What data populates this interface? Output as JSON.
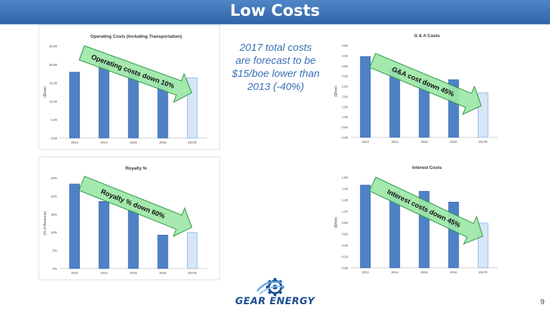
{
  "slide": {
    "title": "Low Costs",
    "summary": "2017 total costs are forecast to be $15/boe lower than 2013 (-40%)",
    "logo_text": "GEAR ENERGY",
    "page_number": "9"
  },
  "colors": {
    "banner": "#3a72b8",
    "bar_actual": "#4f81c7",
    "bar_forecast": "#d6e6f7",
    "arrow_fill": "#9ee8a8",
    "arrow_stroke": "#2d9a44"
  },
  "chart_data": [
    {
      "type": "bar",
      "title": "Operating Costs (Including Transportation)",
      "ylabel": "($/boe)",
      "categories": [
        "2013",
        "2014",
        "2015",
        "2016",
        "2017E"
      ],
      "values": [
        17.9,
        20.9,
        17.8,
        15.4,
        16.4
      ],
      "forecast_index": 4,
      "ylim": [
        0,
        25
      ],
      "yticks": [
        "0.00",
        "5.00",
        "10.00",
        "15.00",
        "20.00",
        "25.00"
      ],
      "annotation": "Operating costs down 10%"
    },
    {
      "type": "bar",
      "title": "G & A Costs",
      "ylabel": "($/boe)",
      "categories": [
        "2013",
        "2014",
        "2015",
        "2016",
        "2017E"
      ],
      "values": [
        3.95,
        3.35,
        2.82,
        2.82,
        2.18
      ],
      "forecast_index": 4,
      "ylim": [
        0,
        4.5
      ],
      "yticks": [
        "0.00",
        "0.50",
        "1.00",
        "1.50",
        "2.00",
        "2.50",
        "3.00",
        "3.50",
        "4.00",
        "4.50"
      ],
      "annotation": "G&A cost down 45%"
    },
    {
      "type": "bar",
      "title": "Royalty %",
      "ylabel": "(% of Revenue)",
      "categories": [
        "2013",
        "2014",
        "2015",
        "2016",
        "2017E"
      ],
      "values": [
        23.3,
        18.5,
        16.0,
        9.2,
        9.9
      ],
      "forecast_index": 4,
      "ylim": [
        0,
        25
      ],
      "yticks": [
        "0%",
        "5%",
        "10%",
        "15%",
        "20%",
        "25%"
      ],
      "annotation": "Royalty % down 60%"
    },
    {
      "type": "bar",
      "title": "Interest Costs",
      "ylabel": "($/boe)",
      "categories": [
        "2013",
        "2014",
        "2015",
        "2016",
        "2017E"
      ],
      "values": [
        1.46,
        1.35,
        1.35,
        1.16,
        0.79
      ],
      "forecast_index": 4,
      "ylim": [
        0,
        1.6
      ],
      "yticks": [
        "0.00",
        "0.20",
        "0.40",
        "0.60",
        "0.80",
        "1.00",
        "1.20",
        "1.40",
        "1.60"
      ],
      "annotation": "Interest costs down 45%"
    }
  ]
}
